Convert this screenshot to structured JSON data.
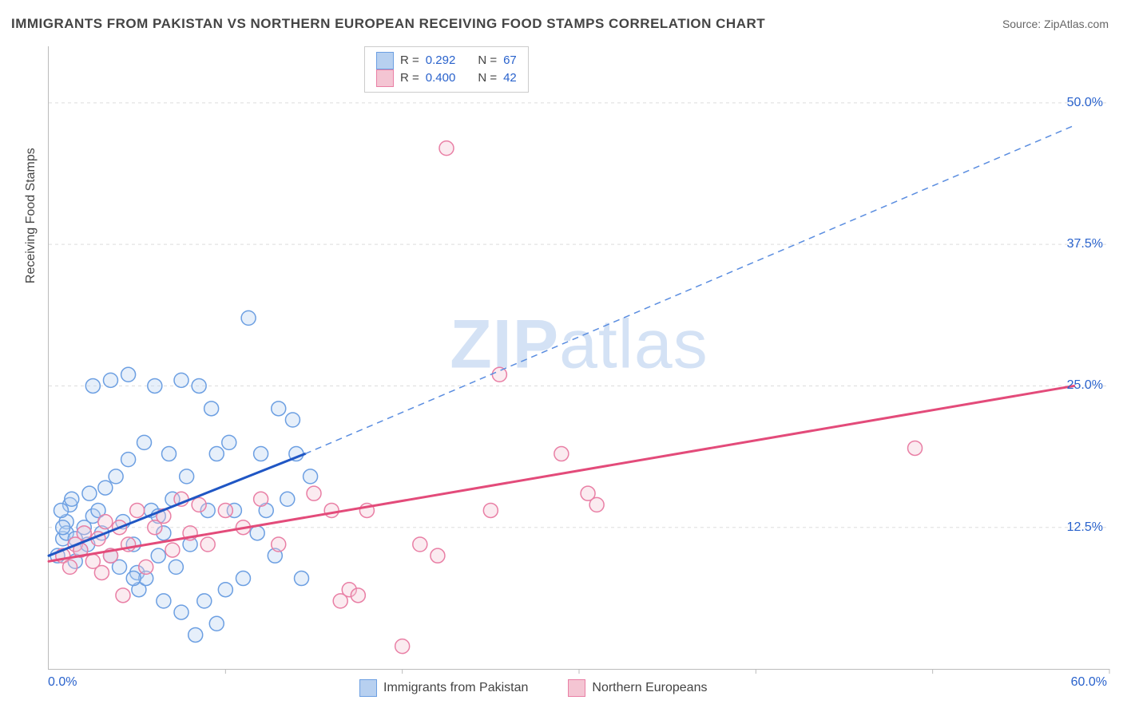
{
  "title": "IMMIGRANTS FROM PAKISTAN VS NORTHERN EUROPEAN RECEIVING FOOD STAMPS CORRELATION CHART",
  "source_label": "Source: ZipAtlas.com",
  "watermark_main": "ZIP",
  "watermark_sub": "atlas",
  "chart": {
    "type": "scatter",
    "background_color": "#ffffff",
    "grid_color": "#dddddd",
    "axis_color": "#bbbbbb",
    "tick_label_color": "#2962cc",
    "xlim": [
      0,
      60
    ],
    "ylim": [
      0,
      55
    ],
    "x_tick_positions": [
      0,
      10,
      20,
      30,
      40,
      50,
      60
    ],
    "y_ticks": [
      {
        "value": 12.5,
        "label": "12.5%"
      },
      {
        "value": 25.0,
        "label": "25.0%"
      },
      {
        "value": 37.5,
        "label": "37.5%"
      },
      {
        "value": 50.0,
        "label": "50.0%"
      }
    ],
    "x_axis_min_label": "0.0%",
    "x_axis_max_label": "60.0%",
    "y_axis_title": "Receiving Food Stamps",
    "marker_radius": 9,
    "marker_stroke_width": 1.5,
    "marker_fill_opacity": 0.35,
    "series": [
      {
        "name": "Immigrants from Pakistan",
        "color_fill": "#b7d0f0",
        "color_stroke": "#6c9fe2",
        "R": "0.292",
        "N": "67",
        "trend_line": {
          "x1": 0,
          "y1": 10,
          "x2": 14.5,
          "y2": 19,
          "solid_color": "#1f56c4",
          "solid_width": 3
        },
        "trend_ext": {
          "x1": 14.5,
          "y1": 19,
          "x2": 58,
          "y2": 48,
          "dash_color": "#5a8de0",
          "dash": "8,6",
          "width": 1.5
        },
        "points": [
          [
            0.5,
            10
          ],
          [
            0.8,
            11.5
          ],
          [
            1,
            13
          ],
          [
            1.2,
            14.5
          ],
          [
            1,
            12
          ],
          [
            1.3,
            15
          ],
          [
            0.7,
            14
          ],
          [
            1.5,
            9.5
          ],
          [
            1.8,
            10.5
          ],
          [
            2,
            12.5
          ],
          [
            2.2,
            11
          ],
          [
            2.5,
            13.5
          ],
          [
            2.3,
            15.5
          ],
          [
            2.8,
            14
          ],
          [
            3,
            12
          ],
          [
            3.2,
            16
          ],
          [
            3.5,
            10
          ],
          [
            3.8,
            17
          ],
          [
            4,
            9
          ],
          [
            4.2,
            13
          ],
          [
            4.5,
            18.5
          ],
          [
            4.8,
            11
          ],
          [
            5,
            8.5
          ],
          [
            5.1,
            7
          ],
          [
            5.4,
            20
          ],
          [
            5.8,
            14
          ],
          [
            6,
            25
          ],
          [
            6.2,
            10
          ],
          [
            6.5,
            12
          ],
          [
            6.8,
            19
          ],
          [
            7,
            15
          ],
          [
            7.2,
            9
          ],
          [
            7.5,
            5
          ],
          [
            7.8,
            17
          ],
          [
            8,
            11
          ],
          [
            8.3,
            3
          ],
          [
            8.5,
            25
          ],
          [
            9,
            14
          ],
          [
            9.2,
            23
          ],
          [
            9.5,
            19
          ],
          [
            10,
            7
          ],
          [
            10.2,
            20
          ],
          [
            10.5,
            14
          ],
          [
            11,
            8
          ],
          [
            11.3,
            31
          ],
          [
            12,
            19
          ],
          [
            12.3,
            14
          ],
          [
            12.8,
            10
          ],
          [
            13,
            23
          ],
          [
            13.5,
            15
          ],
          [
            14,
            19
          ],
          [
            14.3,
            8
          ],
          [
            7.5,
            25.5
          ],
          [
            2.5,
            25
          ],
          [
            3.5,
            25.5
          ],
          [
            4.5,
            26
          ],
          [
            5.5,
            8
          ],
          [
            6.5,
            6
          ],
          [
            8.8,
            6
          ],
          [
            9.5,
            4
          ],
          [
            11.8,
            12
          ],
          [
            13.8,
            22
          ],
          [
            14.8,
            17
          ],
          [
            4.8,
            8
          ],
          [
            6.2,
            13.5
          ],
          [
            1.5,
            11.5
          ],
          [
            0.8,
            12.5
          ]
        ]
      },
      {
        "name": "Northern Europeans",
        "color_fill": "#f4c5d3",
        "color_stroke": "#e97fa5",
        "R": "0.400",
        "N": "42",
        "trend_line": {
          "x1": 0,
          "y1": 9.5,
          "x2": 58,
          "y2": 25,
          "solid_color": "#e34b7a",
          "solid_width": 3
        },
        "points": [
          [
            0.8,
            10
          ],
          [
            1.2,
            9
          ],
          [
            1.5,
            11
          ],
          [
            1.8,
            10.5
          ],
          [
            2,
            12
          ],
          [
            2.5,
            9.5
          ],
          [
            2.8,
            11.5
          ],
          [
            3,
            8.5
          ],
          [
            3.2,
            13
          ],
          [
            3.5,
            10
          ],
          [
            4,
            12.5
          ],
          [
            4.5,
            11
          ],
          [
            5,
            14
          ],
          [
            5.5,
            9
          ],
          [
            6,
            12.5
          ],
          [
            6.5,
            13.5
          ],
          [
            7,
            10.5
          ],
          [
            7.5,
            15
          ],
          [
            8,
            12
          ],
          [
            8.5,
            14.5
          ],
          [
            9,
            11
          ],
          [
            10,
            14
          ],
          [
            11,
            12.5
          ],
          [
            12,
            15
          ],
          [
            13,
            11
          ],
          [
            15,
            15.5
          ],
          [
            16,
            14
          ],
          [
            17,
            7
          ],
          [
            17.5,
            6.5
          ],
          [
            18,
            14
          ],
          [
            16.5,
            6
          ],
          [
            20,
            2
          ],
          [
            21,
            11
          ],
          [
            22,
            10
          ],
          [
            22.5,
            46
          ],
          [
            25.5,
            26
          ],
          [
            29,
            19
          ],
          [
            30.5,
            15.5
          ],
          [
            31,
            14.5
          ],
          [
            49,
            19.5
          ],
          [
            25,
            14
          ],
          [
            4.2,
            6.5
          ]
        ]
      }
    ]
  },
  "legend_bottom": {
    "label1": "Immigrants from Pakistan",
    "label2": "Northern Europeans"
  },
  "legend_top": {
    "r_label": "R  =",
    "n_label": "N  ="
  }
}
